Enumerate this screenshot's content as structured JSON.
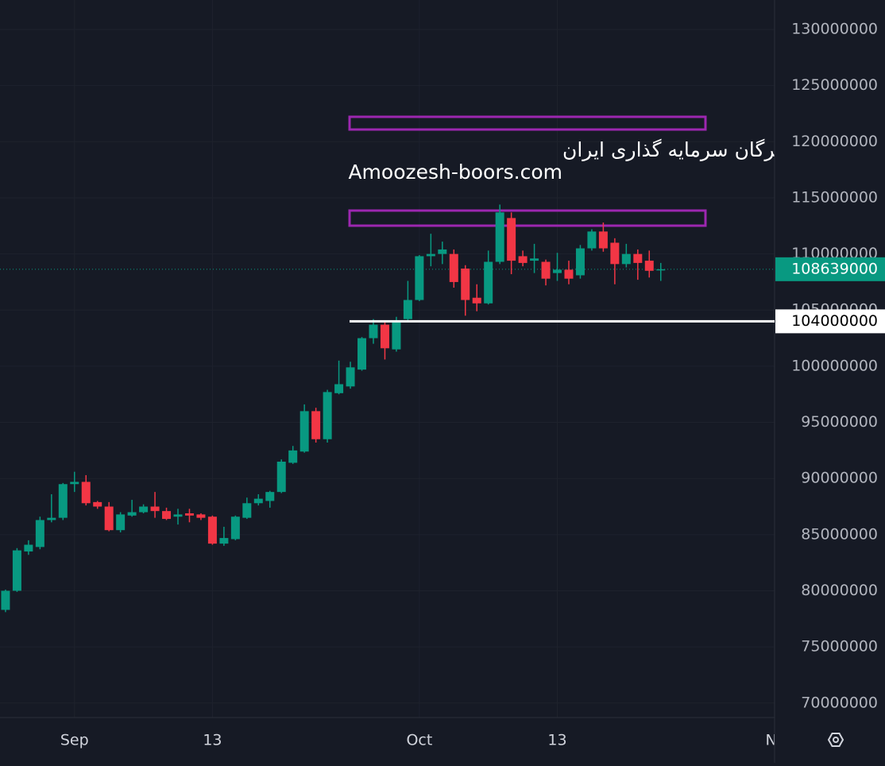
{
  "chart_data": {
    "type": "candlestick",
    "open": [
      78300000,
      80000000,
      83500000,
      83900000,
      86300000,
      86500000,
      89500000,
      89700000,
      87900000,
      87500000,
      85400000,
      86700000,
      87000000,
      87500000,
      87100000,
      86600000,
      86900000,
      86800000,
      86600000,
      84200000,
      84600000,
      86500000,
      87800000,
      88000000,
      88800000,
      91400000,
      92400000,
      96000000,
      93500000,
      97600000,
      98200000,
      99700000,
      102500000,
      103700000,
      101500000,
      104200000,
      105900000,
      109800000,
      110000000,
      110000000,
      108700000,
      106100000,
      105600000,
      109300000,
      113200000,
      109800000,
      109400000,
      109300000,
      108300000,
      108600000,
      108100000,
      110500000,
      112000000,
      111000000,
      109100000,
      110000000,
      109400000,
      108600000
    ],
    "high": [
      80100000,
      83800000,
      84500000,
      86600000,
      88600000,
      89600000,
      90600000,
      90300000,
      88000000,
      87900000,
      87000000,
      88100000,
      87700000,
      88800000,
      87400000,
      87300000,
      87300000,
      86900000,
      86700000,
      85700000,
      86700000,
      88300000,
      88600000,
      88900000,
      91700000,
      92900000,
      96600000,
      96300000,
      97900000,
      100500000,
      100400000,
      102600000,
      104200000,
      103900000,
      104400000,
      107600000,
      109900000,
      111800000,
      111100000,
      110400000,
      109000000,
      107300000,
      110300000,
      114400000,
      113700000,
      110300000,
      110900000,
      109500000,
      110100000,
      109400000,
      110800000,
      112200000,
      112800000,
      111400000,
      110900000,
      110400000,
      110300000,
      109200000
    ],
    "low": [
      78100000,
      79900000,
      83200000,
      83700000,
      86100000,
      86300000,
      88800000,
      87600000,
      87300000,
      85300000,
      85200000,
      86600000,
      86900000,
      86500000,
      86300000,
      85900000,
      86100000,
      86300000,
      84100000,
      84000000,
      84500000,
      86400000,
      87600000,
      87400000,
      88700000,
      91300000,
      92300000,
      93200000,
      93200000,
      97500000,
      98000000,
      99600000,
      102000000,
      100600000,
      101300000,
      104000000,
      105800000,
      108900000,
      109100000,
      107000000,
      104500000,
      104900000,
      105500000,
      109100000,
      108200000,
      108900000,
      108300000,
      107200000,
      107600000,
      107300000,
      107800000,
      110300000,
      110200000,
      107300000,
      108800000,
      107700000,
      107900000,
      107600000
    ],
    "close": [
      80000000,
      83600000,
      84100000,
      86300000,
      86500000,
      89500000,
      89700000,
      87800000,
      87500000,
      85400000,
      86800000,
      87000000,
      87500000,
      87100000,
      86400000,
      86800000,
      86700000,
      86500000,
      84200000,
      84700000,
      86600000,
      87800000,
      88200000,
      88800000,
      91500000,
      92500000,
      96000000,
      93500000,
      97700000,
      98400000,
      99900000,
      102500000,
      103700000,
      101600000,
      104000000,
      105900000,
      109800000,
      110000000,
      110400000,
      107500000,
      105900000,
      105600000,
      109300000,
      113700000,
      109400000,
      109200000,
      109600000,
      107800000,
      108600000,
      107800000,
      110500000,
      112000000,
      110500000,
      109100000,
      110000000,
      109200000,
      108500000,
      108639000
    ],
    "up_color": "#089981",
    "down_color": "#f23645",
    "xlim": [
      -0.48,
      66.9
    ],
    "xticks": [
      {
        "value": 6,
        "label": "Sep"
      },
      {
        "value": 18,
        "label": "13"
      },
      {
        "value": 36,
        "label": "Oct"
      },
      {
        "value": 48,
        "label": "13"
      },
      {
        "value": 67,
        "label": "No"
      }
    ],
    "ylim": [
      68710000,
      132620000
    ],
    "yticks": [
      70000000,
      75000000,
      80000000,
      85000000,
      90000000,
      95000000,
      100000000,
      105000000,
      110000000,
      115000000,
      120000000,
      125000000,
      130000000
    ],
    "grid": true,
    "last_price": 108639000,
    "horizontal_line": 104000000,
    "watermark": [
      "انجمن خبرگان سرمایه گذاری ایران",
      "Amoozesh-boors.com"
    ]
  }
}
